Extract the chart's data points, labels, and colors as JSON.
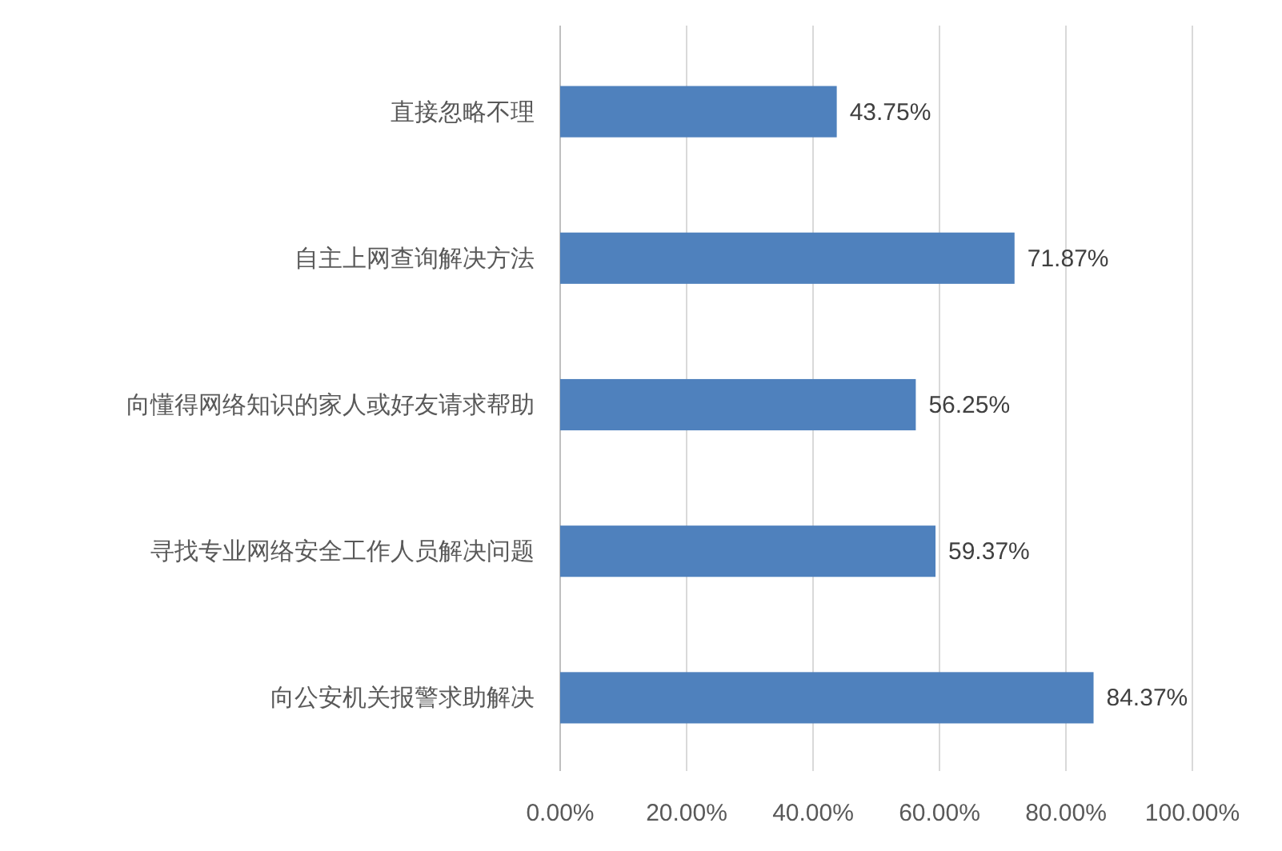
{
  "chart_data": {
    "type": "bar",
    "orientation": "horizontal",
    "categories": [
      "直接忽略不理",
      "自主上网查询解决方法",
      "向懂得网络知识的家人或好友请求帮助",
      "寻找专业网络安全工作人员解决问题",
      "向公安机关报警求助解决"
    ],
    "values": [
      43.75,
      71.87,
      56.25,
      59.37,
      84.37
    ],
    "value_labels": [
      "43.75%",
      "71.87%",
      "56.25%",
      "59.37%",
      "84.37%"
    ],
    "color": "#4f81bd",
    "xlim": [
      0,
      100
    ],
    "xticks": [
      {
        "value": 0,
        "label": "0.00%"
      },
      {
        "value": 20,
        "label": "20.00%"
      },
      {
        "value": 40,
        "label": "40.00%"
      },
      {
        "value": 60,
        "label": "60.00%"
      },
      {
        "value": 80,
        "label": "80.00%"
      },
      {
        "value": 100,
        "label": "100.00%"
      }
    ],
    "grid": "x"
  }
}
